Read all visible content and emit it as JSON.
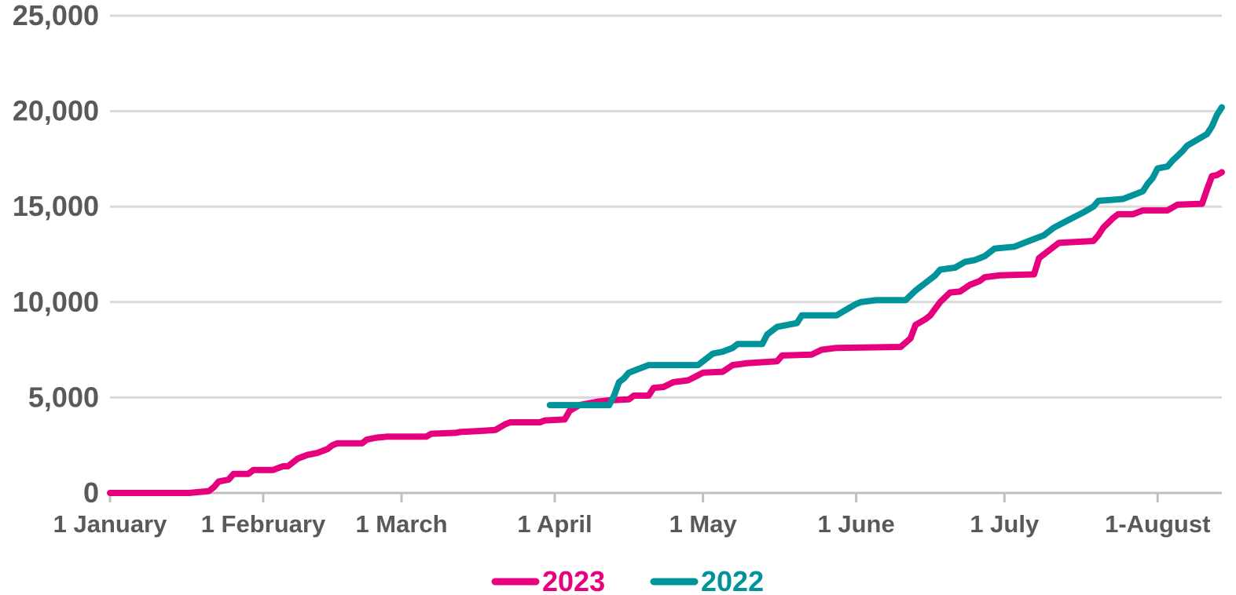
{
  "chart_data": {
    "type": "line",
    "title": "",
    "xlabel": "",
    "ylabel": "",
    "ylim": [
      0,
      25000
    ],
    "yticks": [
      0,
      5000,
      10000,
      15000,
      20000,
      25000
    ],
    "ytick_labels": [
      "0",
      "5,000",
      "10,000",
      "15,000",
      "20,000",
      "25,000"
    ],
    "xlim": [
      "2023-01-01",
      "2023-08-14"
    ],
    "xticks": [
      {
        "date": "2023-01-01",
        "label": "1 January"
      },
      {
        "date": "2023-02-01",
        "label": "1 February"
      },
      {
        "date": "2023-03-01",
        "label": "1 March"
      },
      {
        "date": "2023-04-01",
        "label": "1 April"
      },
      {
        "date": "2023-05-01",
        "label": "1 May"
      },
      {
        "date": "2023-06-01",
        "label": "1 June"
      },
      {
        "date": "2023-07-01",
        "label": "1 July"
      },
      {
        "date": "2023-08-01",
        "label": "1-August"
      }
    ],
    "grid": true,
    "legend_position": "bottom-center",
    "series": [
      {
        "name": "2023",
        "color": "#E6007E",
        "points": [
          [
            "2023-01-01",
            0
          ],
          [
            "2023-01-17",
            0
          ],
          [
            "2023-01-21",
            100
          ],
          [
            "2023-01-22",
            300
          ],
          [
            "2023-01-23",
            600
          ],
          [
            "2023-01-25",
            700
          ],
          [
            "2023-01-26",
            1000
          ],
          [
            "2023-01-29",
            1000
          ],
          [
            "2023-01-30",
            1200
          ],
          [
            "2023-02-03",
            1200
          ],
          [
            "2023-02-05",
            1400
          ],
          [
            "2023-02-06",
            1400
          ],
          [
            "2023-02-07",
            1600
          ],
          [
            "2023-02-08",
            1800
          ],
          [
            "2023-02-10",
            2000
          ],
          [
            "2023-02-12",
            2100
          ],
          [
            "2023-02-14",
            2300
          ],
          [
            "2023-02-15",
            2500
          ],
          [
            "2023-02-16",
            2600
          ],
          [
            "2023-02-21",
            2600
          ],
          [
            "2023-02-22",
            2800
          ],
          [
            "2023-02-24",
            2900
          ],
          [
            "2023-02-26",
            2950
          ],
          [
            "2023-03-06",
            2950
          ],
          [
            "2023-03-07",
            3100
          ],
          [
            "2023-03-12",
            3150
          ],
          [
            "2023-03-13",
            3200
          ],
          [
            "2023-03-17",
            3250
          ],
          [
            "2023-03-20",
            3300
          ],
          [
            "2023-03-22",
            3600
          ],
          [
            "2023-03-23",
            3700
          ],
          [
            "2023-03-29",
            3700
          ],
          [
            "2023-03-30",
            3800
          ],
          [
            "2023-04-03",
            3850
          ],
          [
            "2023-04-04",
            4300
          ],
          [
            "2023-04-06",
            4600
          ],
          [
            "2023-04-10",
            4800
          ],
          [
            "2023-04-12",
            4850
          ],
          [
            "2023-04-16",
            4900
          ],
          [
            "2023-04-17",
            5100
          ],
          [
            "2023-04-20",
            5100
          ],
          [
            "2023-04-21",
            5500
          ],
          [
            "2023-04-23",
            5550
          ],
          [
            "2023-04-25",
            5800
          ],
          [
            "2023-04-28",
            5900
          ],
          [
            "2023-05-01",
            6300
          ],
          [
            "2023-05-05",
            6350
          ],
          [
            "2023-05-07",
            6700
          ],
          [
            "2023-05-10",
            6800
          ],
          [
            "2023-05-16",
            6900
          ],
          [
            "2023-05-17",
            7200
          ],
          [
            "2023-05-23",
            7250
          ],
          [
            "2023-05-25",
            7500
          ],
          [
            "2023-05-28",
            7600
          ],
          [
            "2023-06-10",
            7650
          ],
          [
            "2023-06-12",
            8100
          ],
          [
            "2023-06-13",
            8800
          ],
          [
            "2023-06-15",
            9100
          ],
          [
            "2023-06-16",
            9300
          ],
          [
            "2023-06-18",
            10000
          ],
          [
            "2023-06-20",
            10500
          ],
          [
            "2023-06-22",
            10550
          ],
          [
            "2023-06-24",
            10900
          ],
          [
            "2023-06-26",
            11100
          ],
          [
            "2023-06-27",
            11300
          ],
          [
            "2023-06-30",
            11400
          ],
          [
            "2023-07-07",
            11450
          ],
          [
            "2023-07-08",
            12300
          ],
          [
            "2023-07-10",
            12700
          ],
          [
            "2023-07-12",
            13100
          ],
          [
            "2023-07-19",
            13200
          ],
          [
            "2023-07-20",
            13500
          ],
          [
            "2023-07-21",
            13900
          ],
          [
            "2023-07-23",
            14400
          ],
          [
            "2023-07-24",
            14600
          ],
          [
            "2023-07-27",
            14600
          ],
          [
            "2023-07-29",
            14800
          ],
          [
            "2023-08-03",
            14800
          ],
          [
            "2023-08-05",
            15100
          ],
          [
            "2023-08-10",
            15150
          ],
          [
            "2023-08-11",
            15900
          ],
          [
            "2023-08-12",
            16600
          ],
          [
            "2023-08-13",
            16650
          ],
          [
            "2023-08-14",
            16800
          ]
        ]
      },
      {
        "name": "2022",
        "color": "#00939A",
        "points": [
          [
            "2023-03-31",
            4600
          ],
          [
            "2023-04-12",
            4600
          ],
          [
            "2023-04-13",
            5100
          ],
          [
            "2023-04-14",
            5800
          ],
          [
            "2023-04-15",
            6000
          ],
          [
            "2023-04-16",
            6300
          ],
          [
            "2023-04-18",
            6500
          ],
          [
            "2023-04-20",
            6700
          ],
          [
            "2023-04-30",
            6700
          ],
          [
            "2023-05-01",
            6900
          ],
          [
            "2023-05-03",
            7300
          ],
          [
            "2023-05-05",
            7400
          ],
          [
            "2023-05-07",
            7600
          ],
          [
            "2023-05-08",
            7800
          ],
          [
            "2023-05-13",
            7800
          ],
          [
            "2023-05-14",
            8300
          ],
          [
            "2023-05-15",
            8500
          ],
          [
            "2023-05-16",
            8700
          ],
          [
            "2023-05-20",
            8900
          ],
          [
            "2023-05-21",
            9300
          ],
          [
            "2023-05-28",
            9300
          ],
          [
            "2023-05-30",
            9600
          ],
          [
            "2023-06-01",
            9900
          ],
          [
            "2023-06-02",
            10000
          ],
          [
            "2023-06-05",
            10100
          ],
          [
            "2023-06-11",
            10100
          ],
          [
            "2023-06-13",
            10600
          ],
          [
            "2023-06-15",
            11000
          ],
          [
            "2023-06-17",
            11400
          ],
          [
            "2023-06-18",
            11700
          ],
          [
            "2023-06-21",
            11800
          ],
          [
            "2023-06-23",
            12100
          ],
          [
            "2023-06-25",
            12200
          ],
          [
            "2023-06-27",
            12400
          ],
          [
            "2023-06-28",
            12600
          ],
          [
            "2023-06-29",
            12800
          ],
          [
            "2023-07-03",
            12900
          ],
          [
            "2023-07-05",
            13100
          ],
          [
            "2023-07-07",
            13300
          ],
          [
            "2023-07-09",
            13500
          ],
          [
            "2023-07-11",
            13900
          ],
          [
            "2023-07-14",
            14300
          ],
          [
            "2023-07-17",
            14700
          ],
          [
            "2023-07-19",
            15000
          ],
          [
            "2023-07-20",
            15300
          ],
          [
            "2023-07-25",
            15400
          ],
          [
            "2023-07-27",
            15600
          ],
          [
            "2023-07-29",
            15800
          ],
          [
            "2023-07-30",
            16200
          ],
          [
            "2023-07-31",
            16500
          ],
          [
            "2023-08-01",
            17000
          ],
          [
            "2023-08-03",
            17100
          ],
          [
            "2023-08-04",
            17400
          ],
          [
            "2023-08-06",
            17900
          ],
          [
            "2023-08-07",
            18200
          ],
          [
            "2023-08-09",
            18500
          ],
          [
            "2023-08-11",
            18800
          ],
          [
            "2023-08-12",
            19200
          ],
          [
            "2023-08-13",
            19800
          ],
          [
            "2023-08-14",
            20200
          ]
        ]
      }
    ]
  },
  "legend": {
    "items": [
      {
        "label": "2023",
        "color": "#E6007E"
      },
      {
        "label": "2022",
        "color": "#00939A"
      }
    ]
  }
}
